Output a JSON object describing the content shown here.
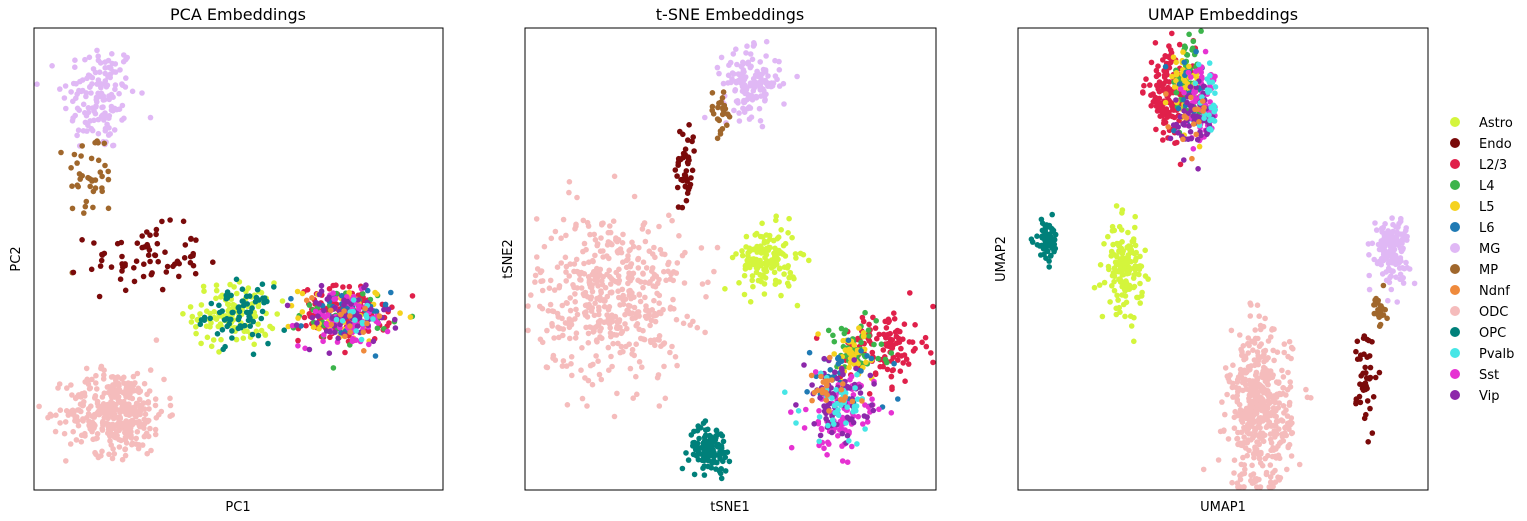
{
  "chart_data": [
    {
      "type": "scatter",
      "title": "PCA Embeddings",
      "xlabel": "PC1",
      "ylabel": "PC2",
      "xlim": [
        0,
        100
      ],
      "ylim": [
        0,
        100
      ],
      "grid": false,
      "ticks": "none",
      "clusters": [
        {
          "label": "MG",
          "center": [
            16,
            85
          ],
          "spread": [
            4.5,
            6
          ],
          "count": 150
        },
        {
          "label": "MP",
          "center": [
            14,
            68
          ],
          "spread": [
            3,
            5
          ],
          "count": 40
        },
        {
          "label": "Endo",
          "center": [
            27,
            50
          ],
          "spread": [
            7,
            3.5
          ],
          "count": 70
        },
        {
          "label": "Astro",
          "center": [
            49,
            38
          ],
          "spread": [
            5,
            3.5
          ],
          "count": 120
        },
        {
          "label": "OPC",
          "center": [
            50,
            38
          ],
          "spread": [
            4,
            3
          ],
          "count": 70
        },
        {
          "label": "L2/3",
          "center": [
            76,
            38
          ],
          "spread": [
            5.5,
            3
          ],
          "count": 140
        },
        {
          "label": "L4",
          "center": [
            76,
            38
          ],
          "spread": [
            5.5,
            3
          ],
          "count": 40
        },
        {
          "label": "L5",
          "center": [
            76,
            38
          ],
          "spread": [
            5.5,
            3
          ],
          "count": 40
        },
        {
          "label": "L6",
          "center": [
            76,
            38
          ],
          "spread": [
            5.5,
            3
          ],
          "count": 30
        },
        {
          "label": "Sst",
          "center": [
            76,
            37
          ],
          "spread": [
            5.5,
            3
          ],
          "count": 70
        },
        {
          "label": "Vip",
          "center": [
            76,
            37
          ],
          "spread": [
            5.5,
            3
          ],
          "count": 60
        },
        {
          "label": "Pvalb",
          "center": [
            78,
            38
          ],
          "spread": [
            4,
            3
          ],
          "count": 15
        },
        {
          "label": "Ndnf",
          "center": [
            76,
            38
          ],
          "spread": [
            5,
            3
          ],
          "count": 15
        },
        {
          "label": "ODC",
          "center": [
            20,
            17
          ],
          "spread": [
            6,
            4.5
          ],
          "count": 380
        }
      ]
    },
    {
      "type": "scatter",
      "title": "t-SNE Embeddings",
      "xlabel": "tSNE1",
      "ylabel": "tSNE2",
      "xlim": [
        0,
        100
      ],
      "ylim": [
        0,
        100
      ],
      "grid": false,
      "ticks": "none",
      "clusters": [
        {
          "label": "MG",
          "center": [
            55,
            88
          ],
          "spread": [
            3.5,
            3.5
          ],
          "count": 150
        },
        {
          "label": "MP",
          "center": [
            47.5,
            82
          ],
          "spread": [
            1.5,
            2.5
          ],
          "count": 25
        },
        {
          "label": "Endo",
          "center": [
            39,
            70
          ],
          "spread": [
            1.2,
            5
          ],
          "count": 45
        },
        {
          "label": "Astro",
          "center": [
            59,
            50
          ],
          "spread": [
            3.5,
            3.5
          ],
          "count": 150
        },
        {
          "label": "ODC",
          "center": [
            21,
            42
          ],
          "spread": [
            9,
            9
          ],
          "count": 480
        },
        {
          "label": "OPC",
          "center": [
            45,
            9
          ],
          "spread": [
            2.5,
            2.5
          ],
          "count": 120
        },
        {
          "label": "L2/3",
          "center": [
            87,
            31
          ],
          "spread": [
            5,
            4
          ],
          "count": 120
        },
        {
          "label": "L4",
          "center": [
            80,
            30
          ],
          "spread": [
            4,
            3
          ],
          "count": 45
        },
        {
          "label": "L5",
          "center": [
            80,
            29
          ],
          "spread": [
            4,
            3
          ],
          "count": 40
        },
        {
          "label": "L6",
          "center": [
            78,
            25
          ],
          "spread": [
            5,
            4
          ],
          "count": 30
        },
        {
          "label": "Sst",
          "center": [
            77,
            16
          ],
          "spread": [
            4,
            4
          ],
          "count": 90
        },
        {
          "label": "Vip",
          "center": [
            76,
            20
          ],
          "spread": [
            4,
            4
          ],
          "count": 80
        },
        {
          "label": "Pvalb",
          "center": [
            77,
            18
          ],
          "spread": [
            5,
            4
          ],
          "count": 40
        },
        {
          "label": "Ndnf",
          "center": [
            73,
            21
          ],
          "spread": [
            4,
            3
          ],
          "count": 25
        }
      ]
    },
    {
      "type": "scatter",
      "title": "UMAP Embeddings",
      "xlabel": "UMAP1",
      "ylabel": "UMAP2",
      "xlim": [
        0,
        100
      ],
      "ylim": [
        0,
        100
      ],
      "grid": false,
      "ticks": "none",
      "clusters": [
        {
          "label": "L2/3",
          "center": [
            37,
            86
          ],
          "spread": [
            3,
            5
          ],
          "count": 140
        },
        {
          "label": "L4",
          "center": [
            41,
            88
          ],
          "spread": [
            2,
            4
          ],
          "count": 50
        },
        {
          "label": "L5",
          "center": [
            41,
            88
          ],
          "spread": [
            2,
            4
          ],
          "count": 45
        },
        {
          "label": "L6",
          "center": [
            42,
            85
          ],
          "spread": [
            2,
            4
          ],
          "count": 25
        },
        {
          "label": "Sst",
          "center": [
            45,
            83
          ],
          "spread": [
            2,
            4
          ],
          "count": 70
        },
        {
          "label": "Vip",
          "center": [
            43,
            80
          ],
          "spread": [
            2.5,
            4
          ],
          "count": 60
        },
        {
          "label": "Pvalb",
          "center": [
            47,
            84
          ],
          "spread": [
            1.5,
            3.5
          ],
          "count": 30
        },
        {
          "label": "Ndnf",
          "center": [
            42,
            82
          ],
          "spread": [
            2,
            3
          ],
          "count": 15
        },
        {
          "label": "OPC",
          "center": [
            7,
            54
          ],
          "spread": [
            1.5,
            2.2
          ],
          "count": 60
        },
        {
          "label": "Astro",
          "center": [
            26,
            48
          ],
          "spread": [
            2.2,
            4.5
          ],
          "count": 150
        },
        {
          "label": "MG",
          "center": [
            91,
            52
          ],
          "spread": [
            2.2,
            3.5
          ],
          "count": 140
        },
        {
          "label": "MP",
          "center": [
            88,
            40
          ],
          "spread": [
            0.8,
            2.5
          ],
          "count": 25
        },
        {
          "label": "Endo",
          "center": [
            85,
            24
          ],
          "spread": [
            1.2,
            6
          ],
          "count": 45
        },
        {
          "label": "ODC",
          "center": [
            59,
            17
          ],
          "spread": [
            3.8,
            8.5
          ],
          "count": 480
        }
      ]
    }
  ],
  "legend": {
    "placement": "right",
    "items": [
      {
        "label": "Astro",
        "color": "#d4f53c"
      },
      {
        "label": "Endo",
        "color": "#7a0a0a"
      },
      {
        "label": "L2/3",
        "color": "#e0204a"
      },
      {
        "label": "L4",
        "color": "#3cb44b"
      },
      {
        "label": "L5",
        "color": "#f5d21e"
      },
      {
        "label": "L6",
        "color": "#1f7ab4"
      },
      {
        "label": "MG",
        "color": "#e0b8f5"
      },
      {
        "label": "MP",
        "color": "#a0672c"
      },
      {
        "label": "Ndnf",
        "color": "#ef8a3c"
      },
      {
        "label": "ODC",
        "color": "#f5bcbc"
      },
      {
        "label": "OPC",
        "color": "#00807a"
      },
      {
        "label": "Pvalb",
        "color": "#46e6e6"
      },
      {
        "label": "Sst",
        "color": "#e632d2"
      },
      {
        "label": "Vip",
        "color": "#8c28aa"
      }
    ]
  }
}
